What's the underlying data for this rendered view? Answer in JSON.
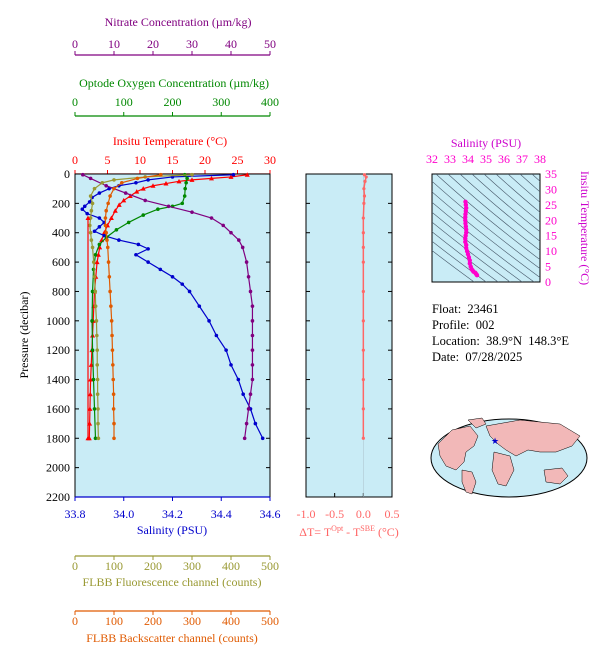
{
  "info": {
    "float": "Float:  23461",
    "profile": "Profile:  002",
    "location": "Location:  38.9°N  148.3°E",
    "date": "Date:  07/28/2025"
  },
  "colors": {
    "nitrate": "#800080",
    "oxygen": "#008800",
    "temperature": "#ff0000",
    "salinity": "#0000cc",
    "fluorescence": "#999933",
    "backscatter": "#e05a00",
    "deltaT": "#ff6666",
    "ts": "#ff00cc",
    "plot_bg": "#c9ecf6",
    "land": "#f2b8b8"
  },
  "chart_data": [
    {
      "type": "line",
      "title": "",
      "ylabel": "Pressure (decibar)",
      "ylim": [
        2200,
        0
      ],
      "yticks": [
        "0",
        "200",
        "400",
        "600",
        "800",
        "1000",
        "1200",
        "1400",
        "1600",
        "1800",
        "2000",
        "2200"
      ],
      "axes": {
        "nitrate": {
          "label": "Nitrate Concentration (µm/kg)",
          "range": [
            0,
            50
          ],
          "ticks": [
            "0",
            "10",
            "20",
            "30",
            "40",
            "50"
          ]
        },
        "oxygen": {
          "label": "Optode Oxygen Concentration (µm/kg)",
          "range": [
            0,
            400
          ],
          "ticks": [
            "0",
            "100",
            "200",
            "300",
            "400"
          ]
        },
        "temperature": {
          "label": "Insitu Temperature (°C)",
          "range": [
            0,
            30
          ],
          "ticks": [
            "0",
            "5",
            "10",
            "15",
            "20",
            "25",
            "30"
          ]
        },
        "salinity": {
          "label": "Salinity (PSU)",
          "range": [
            33.8,
            34.6
          ],
          "ticks": [
            "33.8",
            "34.0",
            "34.2",
            "34.4",
            "34.6"
          ]
        },
        "fluorescence": {
          "label": "FLBB Fluorescence channel (counts)",
          "range": [
            0,
            500
          ],
          "ticks": [
            "0",
            "100",
            "200",
            "300",
            "400",
            "500"
          ]
        },
        "backscatter": {
          "label": "FLBB Backscatter channel (counts)",
          "range": [
            0,
            500
          ],
          "ticks": [
            "0",
            "100",
            "200",
            "300",
            "400",
            "500"
          ]
        }
      },
      "series": [
        {
          "key": "temperature",
          "color": "#ff0000",
          "points": [
            [
              26.5,
              5
            ],
            [
              24,
              20
            ],
            [
              21,
              30
            ],
            [
              18,
              40
            ],
            [
              16,
              50
            ],
            [
              14,
              65
            ],
            [
              12,
              80
            ],
            [
              10.5,
              100
            ],
            [
              9.5,
              120
            ],
            [
              8.5,
              150
            ],
            [
              7.5,
              180
            ],
            [
              6.8,
              210
            ],
            [
              6.2,
              250
            ],
            [
              5.6,
              300
            ],
            [
              5.0,
              350
            ],
            [
              4.5,
              400
            ],
            [
              4.1,
              450
            ],
            [
              3.8,
              500
            ],
            [
              3.6,
              550
            ],
            [
              3.4,
              600
            ],
            [
              3.2,
              700
            ],
            [
              3.0,
              800
            ],
            [
              2.9,
              900
            ],
            [
              2.8,
              1000
            ],
            [
              2.7,
              1100
            ],
            [
              2.6,
              1200
            ],
            [
              2.5,
              1300
            ],
            [
              2.4,
              1400
            ],
            [
              2.35,
              1500
            ],
            [
              2.3,
              1600
            ],
            [
              2.25,
              1700
            ],
            [
              2.2,
              1800
            ]
          ]
        },
        {
          "key": "salinity",
          "color": "#0000cc",
          "points": [
            [
              34.45,
              5
            ],
            [
              34.2,
              20
            ],
            [
              34.1,
              40
            ],
            [
              34.05,
              60
            ],
            [
              33.98,
              80
            ],
            [
              33.94,
              100
            ],
            [
              33.9,
              130
            ],
            [
              33.87,
              160
            ],
            [
              33.86,
              190
            ],
            [
              33.84,
              220
            ],
            [
              33.83,
              240
            ],
            [
              33.85,
              270
            ],
            [
              33.9,
              300
            ],
            [
              33.92,
              330
            ],
            [
              33.9,
              360
            ],
            [
              33.88,
              390
            ],
            [
              33.92,
              420
            ],
            [
              33.98,
              450
            ],
            [
              34.06,
              480
            ],
            [
              34.1,
              510
            ],
            [
              34.05,
              550
            ],
            [
              34.1,
              600
            ],
            [
              34.15,
              650
            ],
            [
              34.2,
              700
            ],
            [
              34.24,
              750
            ],
            [
              34.27,
              800
            ],
            [
              34.31,
              900
            ],
            [
              34.35,
              1000
            ],
            [
              34.38,
              1100
            ],
            [
              34.42,
              1200
            ],
            [
              34.44,
              1300
            ],
            [
              34.47,
              1400
            ],
            [
              34.49,
              1500
            ],
            [
              34.52,
              1600
            ],
            [
              34.54,
              1700
            ],
            [
              34.57,
              1800
            ]
          ]
        },
        {
          "key": "oxygen",
          "color": "#008800",
          "points": [
            [
              225,
              5
            ],
            [
              230,
              30
            ],
            [
              228,
              60
            ],
            [
              226,
              100
            ],
            [
              225,
              150
            ],
            [
              220,
              200
            ],
            [
              200,
              220
            ],
            [
              170,
              240
            ],
            [
              140,
              280
            ],
            [
              110,
              330
            ],
            [
              85,
              380
            ],
            [
              65,
              430
            ],
            [
              50,
              480
            ],
            [
              42,
              550
            ],
            [
              38,
              650
            ],
            [
              36,
              800
            ],
            [
              35,
              1000
            ],
            [
              36,
              1200
            ],
            [
              38,
              1400
            ],
            [
              40,
              1600
            ],
            [
              42,
              1800
            ]
          ]
        },
        {
          "key": "nitrate",
          "color": "#800080",
          "points": [
            [
              2,
              5
            ],
            [
              4,
              30
            ],
            [
              8,
              80
            ],
            [
              13,
              130
            ],
            [
              18,
              180
            ],
            [
              24,
              220
            ],
            [
              30,
              260
            ],
            [
              35,
              300
            ],
            [
              38,
              350
            ],
            [
              40,
              400
            ],
            [
              42,
              450
            ],
            [
              43,
              500
            ],
            [
              44,
              600
            ],
            [
              44.5,
              700
            ],
            [
              45,
              800
            ],
            [
              45.5,
              900
            ],
            [
              45.5,
              1000
            ],
            [
              45.5,
              1100
            ],
            [
              45.5,
              1200
            ],
            [
              45.5,
              1300
            ],
            [
              45.5,
              1400
            ],
            [
              45,
              1500
            ],
            [
              44.5,
              1600
            ],
            [
              44,
              1700
            ],
            [
              43.5,
              1800
            ]
          ]
        },
        {
          "key": "fluorescence",
          "color": "#999933",
          "points": [
            [
              300,
              5
            ],
            [
              180,
              20
            ],
            [
              100,
              40
            ],
            [
              70,
              60
            ],
            [
              50,
              100
            ],
            [
              40,
              150
            ],
            [
              45,
              200
            ],
            [
              42,
              250
            ],
            [
              40,
              300
            ],
            [
              38,
              350
            ],
            [
              40,
              400
            ],
            [
              42,
              450
            ],
            [
              45,
              500
            ],
            [
              48,
              600
            ],
            [
              50,
              700
            ],
            [
              52,
              800
            ],
            [
              53,
              900
            ],
            [
              55,
              1000
            ],
            [
              56,
              1100
            ],
            [
              57,
              1200
            ],
            [
              57,
              1300
            ],
            [
              58,
              1400
            ],
            [
              58,
              1500
            ],
            [
              59,
              1600
            ],
            [
              59,
              1700
            ],
            [
              60,
              1800
            ]
          ]
        },
        {
          "key": "backscatter",
          "color": "#e05a00",
          "points": [
            [
              220,
              5
            ],
            [
              160,
              30
            ],
            [
              120,
              60
            ],
            [
              100,
              100
            ],
            [
              90,
              150
            ],
            [
              85,
              200
            ],
            [
              80,
              250
            ],
            [
              78,
              300
            ],
            [
              78,
              350
            ],
            [
              80,
              400
            ],
            [
              82,
              450
            ],
            [
              84,
              500
            ],
            [
              86,
              600
            ],
            [
              88,
              700
            ],
            [
              90,
              800
            ],
            [
              92,
              900
            ],
            [
              94,
              1000
            ],
            [
              95,
              1100
            ],
            [
              96,
              1200
            ],
            [
              97,
              1300
            ],
            [
              98,
              1400
            ],
            [
              99,
              1500
            ],
            [
              99,
              1600
            ],
            [
              100,
              1700
            ],
            [
              100,
              1800
            ]
          ]
        },
        {
          "key": "temperature",
          "color": "#ff0000",
          "points": [
            [
              2.0,
              300
            ],
            [
              2.0,
              1800
            ]
          ]
        }
      ]
    },
    {
      "type": "line",
      "title": "",
      "xlabel": "ΔT= T^Opt - T^SBE (°C)",
      "xlim": [
        -1.0,
        0.5
      ],
      "xticks": [
        "-1.0",
        "-0.5",
        "0.0",
        "0.5"
      ],
      "ylim": [
        2200,
        0
      ],
      "series": [
        {
          "name": "",
          "color": "#ff6666",
          "points": [
            [
              0.02,
              5
            ],
            [
              0.05,
              20
            ],
            [
              0.03,
              50
            ],
            [
              0.01,
              100
            ],
            [
              0.02,
              150
            ],
            [
              0.01,
              200
            ],
            [
              0.0,
              300
            ],
            [
              0.0,
              400
            ],
            [
              0.0,
              500
            ],
            [
              0.0,
              600
            ],
            [
              0.0,
              800
            ],
            [
              0.0,
              1000
            ],
            [
              0.0,
              1200
            ],
            [
              0.0,
              1400
            ],
            [
              0.0,
              1600
            ],
            [
              0.0,
              1800
            ]
          ]
        }
      ]
    },
    {
      "type": "scatter",
      "title": "",
      "xlabel": "Salinity (PSU)",
      "ylabel": "Insitu Temperature (°C)",
      "xlim": [
        32,
        38
      ],
      "ylim": [
        0,
        35
      ],
      "xticks": [
        "32",
        "33",
        "34",
        "35",
        "36",
        "37",
        "38"
      ],
      "yticks": [
        "0",
        "5",
        "10",
        "15",
        "20",
        "25",
        "30",
        "35"
      ],
      "points": [
        [
          34.5,
          2.2
        ],
        [
          34.45,
          2.6
        ],
        [
          34.4,
          3.0
        ],
        [
          34.3,
          3.4
        ],
        [
          34.25,
          3.8
        ],
        [
          34.2,
          4.2
        ],
        [
          34.15,
          5.0
        ],
        [
          34.1,
          6.0
        ],
        [
          34.1,
          7.0
        ],
        [
          34.05,
          8.0
        ],
        [
          34.0,
          9.0
        ],
        [
          33.95,
          10
        ],
        [
          33.9,
          11
        ],
        [
          33.9,
          12
        ],
        [
          33.85,
          13
        ],
        [
          33.85,
          14
        ],
        [
          33.87,
          15
        ],
        [
          33.9,
          16
        ],
        [
          33.9,
          17
        ],
        [
          33.88,
          18
        ],
        [
          33.86,
          19
        ],
        [
          33.85,
          20
        ],
        [
          33.85,
          21
        ],
        [
          33.86,
          22
        ],
        [
          33.88,
          23
        ],
        [
          33.9,
          24
        ],
        [
          33.88,
          25
        ],
        [
          33.86,
          26
        ]
      ]
    }
  ]
}
